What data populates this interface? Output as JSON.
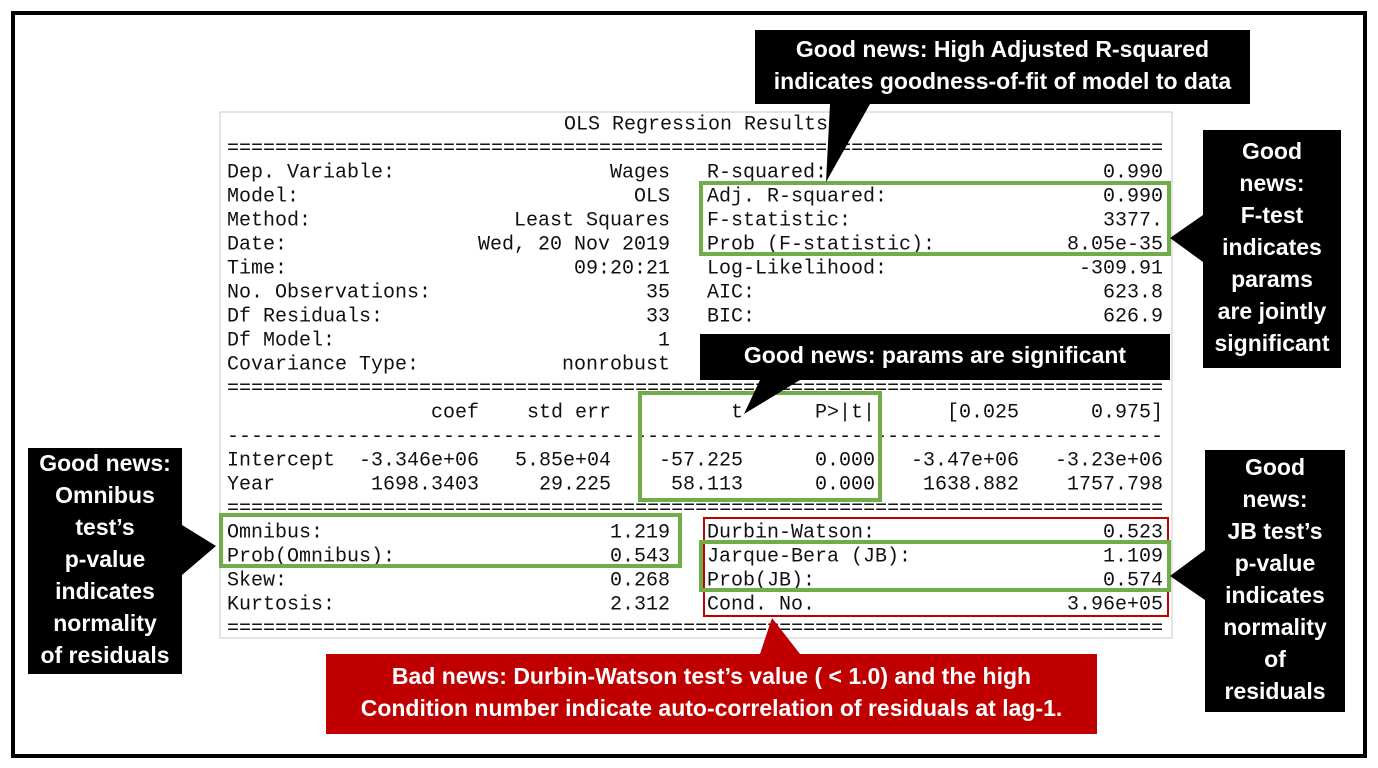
{
  "summary": {
    "title": "OLS Regression Results",
    "rule_double": "==============================================================================",
    "rule_single": "------------------------------------------------------------------------------",
    "left": [
      [
        "Dep. Variable:",
        "Wages"
      ],
      [
        "Model:",
        "OLS"
      ],
      [
        "Method:",
        "Least Squares"
      ],
      [
        "Date:",
        "Wed, 20 Nov 2019"
      ],
      [
        "Time:",
        "09:20:21"
      ],
      [
        "No. Observations:",
        "35"
      ],
      [
        "Df Residuals:",
        "33"
      ],
      [
        "Df Model:",
        "1"
      ],
      [
        "Covariance Type:",
        "nonrobust"
      ]
    ],
    "right": [
      [
        "R-squared:",
        "0.990"
      ],
      [
        "Adj. R-squared:",
        "0.990"
      ],
      [
        "F-statistic:",
        "3377."
      ],
      [
        "Prob (F-statistic):",
        "8.05e-35"
      ],
      [
        "Log-Likelihood:",
        "-309.91"
      ],
      [
        "AIC:",
        "623.8"
      ],
      [
        "BIC:",
        "626.9"
      ]
    ],
    "coef_header": [
      "coef",
      "std err",
      "t",
      "P>|t|",
      "[0.025",
      "0.975]"
    ],
    "coef_rows": [
      [
        "Intercept",
        "-3.346e+06",
        "5.85e+04",
        "-57.225",
        "0.000",
        "-3.47e+06",
        "-3.23e+06"
      ],
      [
        "Year",
        "1698.3403",
        "29.225",
        "58.113",
        "0.000",
        "1638.882",
        "1757.798"
      ]
    ],
    "diag_left": [
      [
        "Omnibus:",
        "1.219"
      ],
      [
        "Prob(Omnibus):",
        "0.543"
      ],
      [
        "Skew:",
        "0.268"
      ],
      [
        "Kurtosis:",
        "2.312"
      ]
    ],
    "diag_right": [
      [
        "Durbin-Watson:",
        "0.523"
      ],
      [
        "Jarque-Bera (JB):",
        "1.109"
      ],
      [
        "Prob(JB):",
        "0.574"
      ],
      [
        "Cond. No.",
        "3.96e+05"
      ]
    ]
  },
  "callouts": [
    {
      "lines": [
        "Good news: High Adjusted R-squared",
        "indicates goodness-of-fit of model to data"
      ]
    },
    {
      "lines": [
        "Good",
        "news:",
        "F-test",
        "indicates",
        "params",
        "are jointly",
        "significant"
      ]
    },
    {
      "lines": [
        "Good news: params are significant"
      ]
    },
    {
      "lines": [
        "Good news:",
        "Omnibus",
        "test’s",
        "p-value",
        "indicates",
        "normality",
        "of residuals"
      ]
    },
    {
      "lines": [
        "Good",
        "news:",
        "JB test’s",
        "p-value",
        "indicates",
        "normality",
        "of",
        "residuals"
      ]
    },
    {
      "lines": [
        "Bad news: Durbin-Watson test’s value ( < 1.0) and the high",
        "Condition number indicate auto-correlation of residuals at lag-1."
      ]
    }
  ]
}
